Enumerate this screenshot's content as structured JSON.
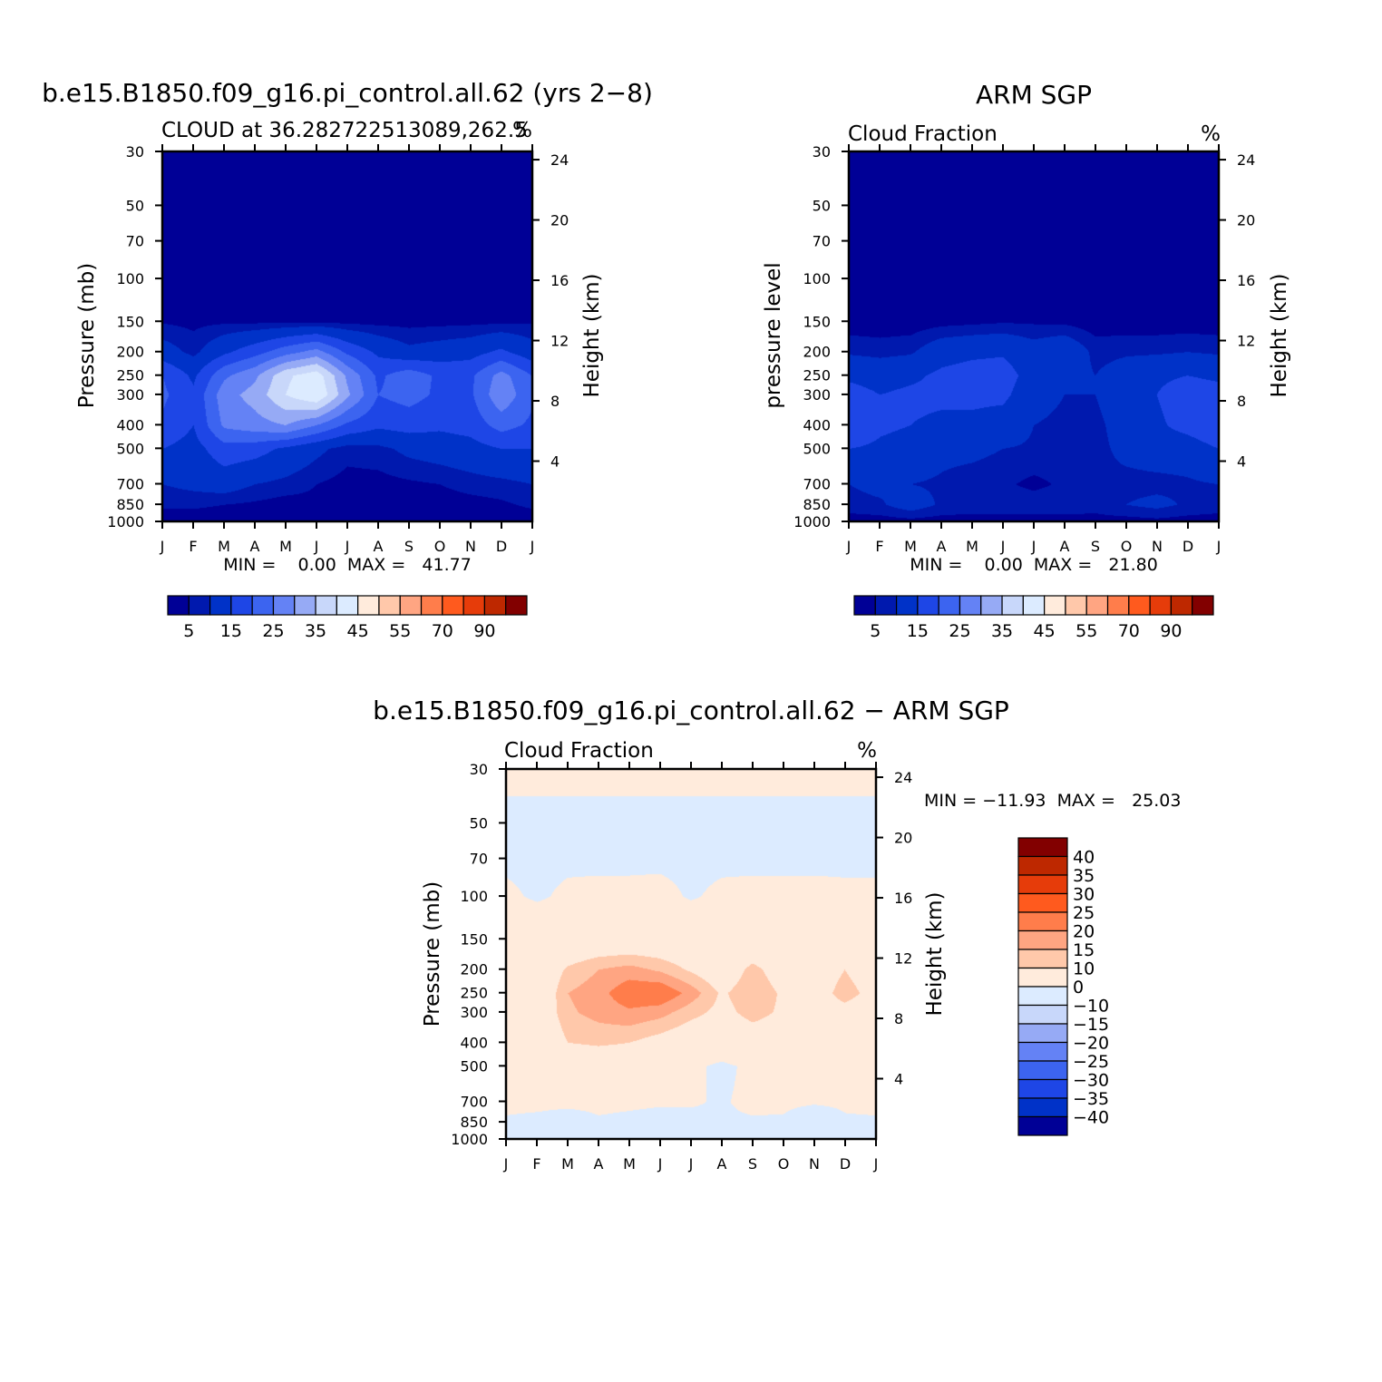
{
  "colors": {
    "abs_levels": [
      "#000096",
      "#0019AE",
      "#0032C8",
      "#1E46E6",
      "#3C64F0",
      "#6482F5",
      "#96AAF5",
      "#C8D7FA",
      "#DCEBFF",
      "#FFEBDC",
      "#FFC8AA",
      "#FFA582",
      "#FF7D4B",
      "#FF5A1E",
      "#E63C0A",
      "#BE2800",
      "#820000"
    ],
    "diff_levels": [
      "#000096",
      "#0019AE",
      "#0032C8",
      "#1E46E6",
      "#3C64F0",
      "#6482F5",
      "#96AAF5",
      "#C8D7FA",
      "#DCEBFF",
      "#FFEBDC",
      "#FFC8AA",
      "#FFA582",
      "#FF7D4B",
      "#FF5A1E",
      "#E63C0A",
      "#BE2800",
      "#820000"
    ]
  },
  "chart_data": [
    {
      "type": "heatmap",
      "id": "model",
      "title": "b.e15.B1850.f09_g16.pi_control.all.62 (yrs 2−8)",
      "subtitle_left": "CLOUD at 36.282722513089,262.5",
      "subtitle_right": "%",
      "ylabel": "Pressure (mb)",
      "ylabel_right": "Height (km)",
      "x_ticks": [
        "J",
        "F",
        "M",
        "A",
        "M",
        "J",
        "J",
        "A",
        "S",
        "O",
        "N",
        "D",
        "J"
      ],
      "y_ticks": [
        "30",
        "50",
        "70",
        "100",
        "150",
        "200",
        "250",
        "300",
        "400",
        "500",
        "700",
        "850",
        "1000"
      ],
      "y_ticks_right": [
        "24",
        "20",
        "16",
        "12",
        "8",
        "4"
      ],
      "minmax": "MIN =    0.00  MAX =   41.77",
      "colorbar_labels": [
        "5",
        "15",
        "25",
        "35",
        "45",
        "55",
        "70",
        "90"
      ],
      "levels": [
        2.5,
        5,
        10,
        15,
        20,
        25,
        30,
        35,
        40,
        45,
        50,
        55,
        60,
        70,
        80,
        90
      ],
      "ylim": [
        1000,
        30
      ],
      "grid": [
        [
          0.3,
          0.3,
          0.3,
          0.3,
          0.3,
          0.3,
          0.3,
          0.3,
          0.3,
          0.3,
          0.3,
          0.3,
          0.3
        ],
        [
          0.4,
          0.4,
          0.4,
          0.4,
          0.4,
          0.4,
          0.4,
          0.4,
          0.4,
          0.4,
          0.4,
          0.4,
          0.4
        ],
        [
          0.5,
          0.5,
          0.5,
          0.5,
          0.5,
          0.5,
          0.5,
          0.5,
          0.5,
          0.5,
          0.5,
          0.5,
          0.5
        ],
        [
          0.8,
          0.6,
          0.6,
          0.6,
          0.6,
          0.6,
          0.6,
          0.6,
          0.6,
          0.6,
          0.6,
          0.6,
          0.8
        ],
        [
          2.2,
          1.8,
          2.0,
          1.9,
          1.9,
          2.0,
          1.7,
          1.6,
          1.6,
          1.7,
          1.8,
          1.9,
          2.2
        ],
        [
          7,
          4,
          9,
          13,
          18,
          22,
          14,
          9,
          6,
          7,
          8,
          11,
          7
        ],
        [
          15,
          9,
          19,
          24,
          34,
          38,
          24,
          14,
          18,
          14,
          14,
          22,
          15
        ],
        [
          16,
          11,
          23,
          27,
          35,
          40,
          26,
          15,
          17,
          14,
          14,
          24,
          16
        ],
        [
          14,
          10,
          21,
          23,
          25,
          20,
          14,
          11,
          12,
          11,
          12,
          17,
          14
        ],
        [
          10,
          8,
          13,
          12,
          9,
          6,
          3.5,
          4,
          6,
          7,
          8,
          10,
          10
        ],
        [
          5,
          6,
          7,
          5,
          4,
          2.5,
          1.5,
          1.5,
          2,
          2.5,
          3.5,
          4,
          5
        ],
        [
          3,
          3,
          2.5,
          2,
          1.3,
          1.8,
          0.8,
          0.8,
          1,
          1.2,
          1.5,
          2,
          3
        ],
        [
          0.9,
          1,
          0.9,
          0.8,
          0.5,
          0.5,
          0.5,
          0.5,
          0.6,
          0.7,
          0.8,
          0.9,
          0.9
        ]
      ]
    },
    {
      "type": "heatmap",
      "id": "obs",
      "title": "ARM SGP",
      "subtitle_left": "Cloud Fraction",
      "subtitle_right": "%",
      "ylabel": "pressure level",
      "ylabel_right": "Height (km)",
      "x_ticks": [
        "J",
        "F",
        "M",
        "A",
        "M",
        "J",
        "J",
        "A",
        "S",
        "O",
        "N",
        "D",
        "J"
      ],
      "y_ticks": [
        "30",
        "50",
        "70",
        "100",
        "150",
        "200",
        "250",
        "300",
        "400",
        "500",
        "700",
        "850",
        "1000"
      ],
      "y_ticks_right": [
        "24",
        "20",
        "16",
        "12",
        "8",
        "4"
      ],
      "minmax": "MIN =    0.00  MAX =   21.80",
      "colorbar_labels": [
        "5",
        "15",
        "25",
        "35",
        "45",
        "55",
        "70",
        "90"
      ],
      "levels": [
        2.5,
        5,
        10,
        15,
        20,
        25,
        30,
        35,
        40,
        45,
        50,
        55,
        60,
        70,
        80,
        90
      ],
      "ylim": [
        1000,
        30
      ],
      "grid": [
        [
          0.3,
          0.3,
          0.3,
          0.3,
          0.3,
          0.3,
          0.3,
          0.3,
          0.3,
          0.3,
          0.3,
          0.3,
          0.3
        ],
        [
          0.4,
          0.4,
          0.4,
          0.4,
          0.4,
          0.4,
          0.4,
          0.4,
          0.4,
          0.4,
          0.4,
          0.4,
          0.4
        ],
        [
          0.5,
          0.5,
          0.5,
          0.5,
          0.5,
          0.5,
          0.5,
          0.5,
          0.5,
          0.5,
          0.5,
          0.5,
          0.5
        ],
        [
          0.6,
          0.6,
          0.6,
          0.6,
          0.6,
          0.6,
          0.6,
          0.6,
          0.6,
          0.6,
          0.6,
          0.6,
          0.6
        ],
        [
          0.9,
          0.8,
          0.9,
          1.5,
          1.8,
          2.2,
          2.1,
          1.8,
          1.0,
          0.9,
          0.9,
          0.9,
          0.9
        ],
        [
          4.5,
          4,
          4.5,
          8,
          9,
          9.5,
          7,
          9,
          4,
          4.5,
          4.5,
          5,
          4.5
        ],
        [
          9,
          8,
          9,
          11,
          12,
          12,
          8,
          7,
          5,
          7,
          9,
          10,
          9
        ],
        [
          12,
          10,
          11,
          11,
          11,
          11,
          7,
          5,
          5,
          8,
          10,
          13,
          12
        ],
        [
          15,
          11,
          10,
          9,
          9,
          8,
          5,
          4,
          4,
          7,
          9,
          12,
          15
        ],
        [
          10,
          9,
          8,
          6,
          6,
          5,
          4.5,
          4,
          4,
          6,
          7,
          7,
          10
        ],
        [
          5,
          6,
          5,
          4.5,
          3.5,
          3,
          1.8,
          3,
          4.5,
          4,
          4,
          4.5,
          5
        ],
        [
          4,
          4.5,
          7,
          4.5,
          4,
          4,
          4,
          4,
          3.5,
          5,
          6,
          4.5,
          4
        ],
        [
          1,
          1.2,
          1.4,
          1.2,
          1.2,
          1.3,
          1.3,
          1.3,
          1.5,
          1.3,
          1.6,
          1.3,
          1
        ]
      ]
    },
    {
      "type": "heatmap",
      "id": "diff",
      "title": "b.e15.B1850.f09_g16.pi_control.all.62 − ARM SGP",
      "subtitle_left": "Cloud Fraction",
      "subtitle_right": "%",
      "ylabel": "Pressure (mb)",
      "ylabel_right": "Height (km)",
      "x_ticks": [
        "J",
        "F",
        "M",
        "A",
        "M",
        "J",
        "J",
        "A",
        "S",
        "O",
        "N",
        "D",
        "J"
      ],
      "y_ticks": [
        "30",
        "50",
        "70",
        "100",
        "150",
        "200",
        "250",
        "300",
        "400",
        "500",
        "700",
        "850",
        "1000"
      ],
      "y_ticks_right": [
        "24",
        "20",
        "16",
        "12",
        "8",
        "4"
      ],
      "minmax": "MIN = −11.93  MAX =   25.03",
      "colorbar_labels": [
        "40",
        "35",
        "30",
        "25",
        "20",
        "15",
        "10",
        "0",
        "−10",
        "−15",
        "−20",
        "−25",
        "−30",
        "−35",
        "−40"
      ],
      "levels": [
        -40,
        -35,
        -30,
        -25,
        -20,
        -15,
        -10,
        0,
        10,
        15,
        20,
        25,
        30,
        35,
        40
      ],
      "ylim": [
        1000,
        30
      ],
      "grid": [
        [
          0.5,
          0.5,
          0.5,
          0.5,
          0.5,
          0.5,
          0.5,
          0.5,
          0.5,
          0.5,
          0.5,
          0.5,
          0.5
        ],
        [
          -0.5,
          -0.5,
          -0.5,
          -0.5,
          -0.5,
          -0.5,
          -0.5,
          -0.5,
          -0.5,
          -0.5,
          -0.5,
          -0.5,
          -0.5
        ],
        [
          -0.4,
          -0.5,
          -0.4,
          -0.4,
          -0.4,
          -0.4,
          -0.5,
          -0.4,
          -0.4,
          -0.4,
          -0.4,
          -0.4,
          -0.4
        ],
        [
          0.4,
          -0.3,
          0.4,
          0.5,
          0.5,
          0.6,
          -0.2,
          0.4,
          0.5,
          0.5,
          0.5,
          0.4,
          0.4
        ],
        [
          2,
          2,
          2,
          3,
          3,
          3,
          2,
          2,
          2,
          2,
          2,
          2,
          2
        ],
        [
          6,
          3,
          11,
          15,
          17,
          14,
          9,
          4,
          12,
          6,
          6,
          10,
          6
        ],
        [
          8,
          2,
          15,
          18,
          24,
          25,
          18,
          9,
          14,
          9,
          7,
          12,
          8
        ],
        [
          6,
          3,
          14,
          17,
          19,
          17,
          12,
          8,
          12,
          9,
          7,
          8,
          6
        ],
        [
          4,
          2,
          10,
          11,
          10,
          7,
          4,
          4,
          6,
          6,
          4,
          4,
          4
        ],
        [
          3,
          2,
          3,
          4,
          4,
          3,
          1,
          -1,
          1,
          2,
          2,
          2,
          3
        ],
        [
          1,
          1,
          1,
          1,
          0.8,
          0.5,
          0.4,
          -0.4,
          1,
          0.8,
          0.5,
          0.6,
          1
        ],
        [
          -0.5,
          -1,
          -2,
          -0.5,
          -1,
          -1.5,
          -1,
          -0.5,
          -0.5,
          -0.5,
          -3,
          -0.5,
          -0.5
        ],
        [
          -0.4,
          -0.5,
          -0.5,
          -0.5,
          -0.5,
          -0.5,
          -0.5,
          -0.5,
          -0.5,
          -0.5,
          -0.5,
          -0.5,
          -0.4
        ]
      ]
    }
  ]
}
